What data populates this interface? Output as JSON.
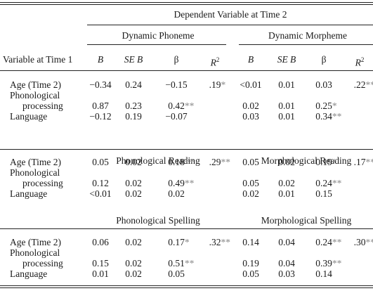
{
  "header": {
    "dependent": "Dependent Variable at Time 2",
    "rowhead": "Variable at Time 1",
    "col_B": "B",
    "col_SEB": "SE B",
    "col_beta": "β",
    "col_R": "R",
    "col_R_sup": "2"
  },
  "sections": [
    {
      "left_title": "Dynamic Phoneme",
      "right_title": "Dynamic Morpheme",
      "rows": [
        {
          "label": [
            "Age (Time 2)"
          ],
          "l": [
            "−0.34",
            "0.24",
            "−0.15",
            ""
          ],
          "l_sig": [
            "",
            "",
            "",
            ""
          ],
          "l_r2": ".19",
          "l_r2_sig": "*",
          "r": [
            "<0.01",
            "0.01",
            "0.03",
            ""
          ],
          "r_sig": [
            "",
            "",
            "",
            ""
          ],
          "r_r2": ".22",
          "r_r2_sig": "**"
        },
        {
          "label": [
            "Phonological",
            "processing"
          ],
          "l": [
            "0.87",
            "0.23",
            "0.42",
            ""
          ],
          "l_sig": [
            "",
            "",
            "**",
            ""
          ],
          "r": [
            "0.02",
            "0.01",
            "0.25",
            ""
          ],
          "r_sig": [
            "",
            "",
            "*",
            ""
          ]
        },
        {
          "label": [
            "Language"
          ],
          "l": [
            "−0.12",
            "0.19",
            "−0.07",
            ""
          ],
          "l_sig": [
            "",
            "",
            "",
            ""
          ],
          "r": [
            "0.03",
            "0.01",
            "0.34",
            ""
          ],
          "r_sig": [
            "",
            "",
            "**",
            ""
          ]
        }
      ]
    },
    {
      "left_title": "Phonological Reading",
      "right_title": "Morphological Reading",
      "rows": [
        {
          "label": [
            "Age (Time 2)"
          ],
          "l": [
            "0.05",
            "0.02",
            "0.18",
            ""
          ],
          "l_sig": [
            "",
            "",
            "**",
            ""
          ],
          "l_r2": ".29",
          "l_r2_sig": "**",
          "r": [
            "0.05",
            "0.02",
            "0.19",
            ""
          ],
          "r_sig": [
            "",
            "",
            "*",
            ""
          ],
          "r_r2": ".17",
          "r_r2_sig": "**"
        },
        {
          "label": [
            "Phonological",
            "processing"
          ],
          "l": [
            "0.12",
            "0.02",
            "0.49",
            ""
          ],
          "l_sig": [
            "",
            "",
            "**",
            ""
          ],
          "r": [
            "0.05",
            "0.02",
            "0.24",
            ""
          ],
          "r_sig": [
            "",
            "",
            "**",
            ""
          ]
        },
        {
          "label": [
            "Language"
          ],
          "l": [
            "<0.01",
            "0.02",
            "0.02",
            ""
          ],
          "l_sig": [
            "",
            "",
            "",
            ""
          ],
          "r": [
            "0.02",
            "0.01",
            "0.15",
            ""
          ],
          "r_sig": [
            "",
            "",
            "",
            ""
          ]
        }
      ]
    },
    {
      "left_title": "Phonological Spelling",
      "right_title": "Morphological Spelling",
      "rows": [
        {
          "label": [
            "Age (Time 2)"
          ],
          "l": [
            "0.06",
            "0.02",
            "0.17",
            ""
          ],
          "l_sig": [
            "",
            "",
            "*",
            ""
          ],
          "l_r2": ".32",
          "l_r2_sig": "**",
          "r": [
            "0.14",
            "0.04",
            "0.24",
            ""
          ],
          "r_sig": [
            "",
            "",
            "**",
            ""
          ],
          "r_r2": ".30",
          "r_r2_sig": "**"
        },
        {
          "label": [
            "Phonological",
            "processing"
          ],
          "l": [
            "0.15",
            "0.02",
            "0.51",
            ""
          ],
          "l_sig": [
            "",
            "",
            "**",
            ""
          ],
          "r": [
            "0.19",
            "0.04",
            "0.39",
            ""
          ],
          "r_sig": [
            "",
            "",
            "**",
            ""
          ]
        },
        {
          "label": [
            "Language"
          ],
          "l": [
            "0.01",
            "0.02",
            "0.05",
            ""
          ],
          "l_sig": [
            "",
            "",
            "",
            ""
          ],
          "r": [
            "0.05",
            "0.03",
            "0.14",
            ""
          ],
          "r_sig": [
            "",
            "",
            "",
            ""
          ]
        }
      ]
    }
  ]
}
